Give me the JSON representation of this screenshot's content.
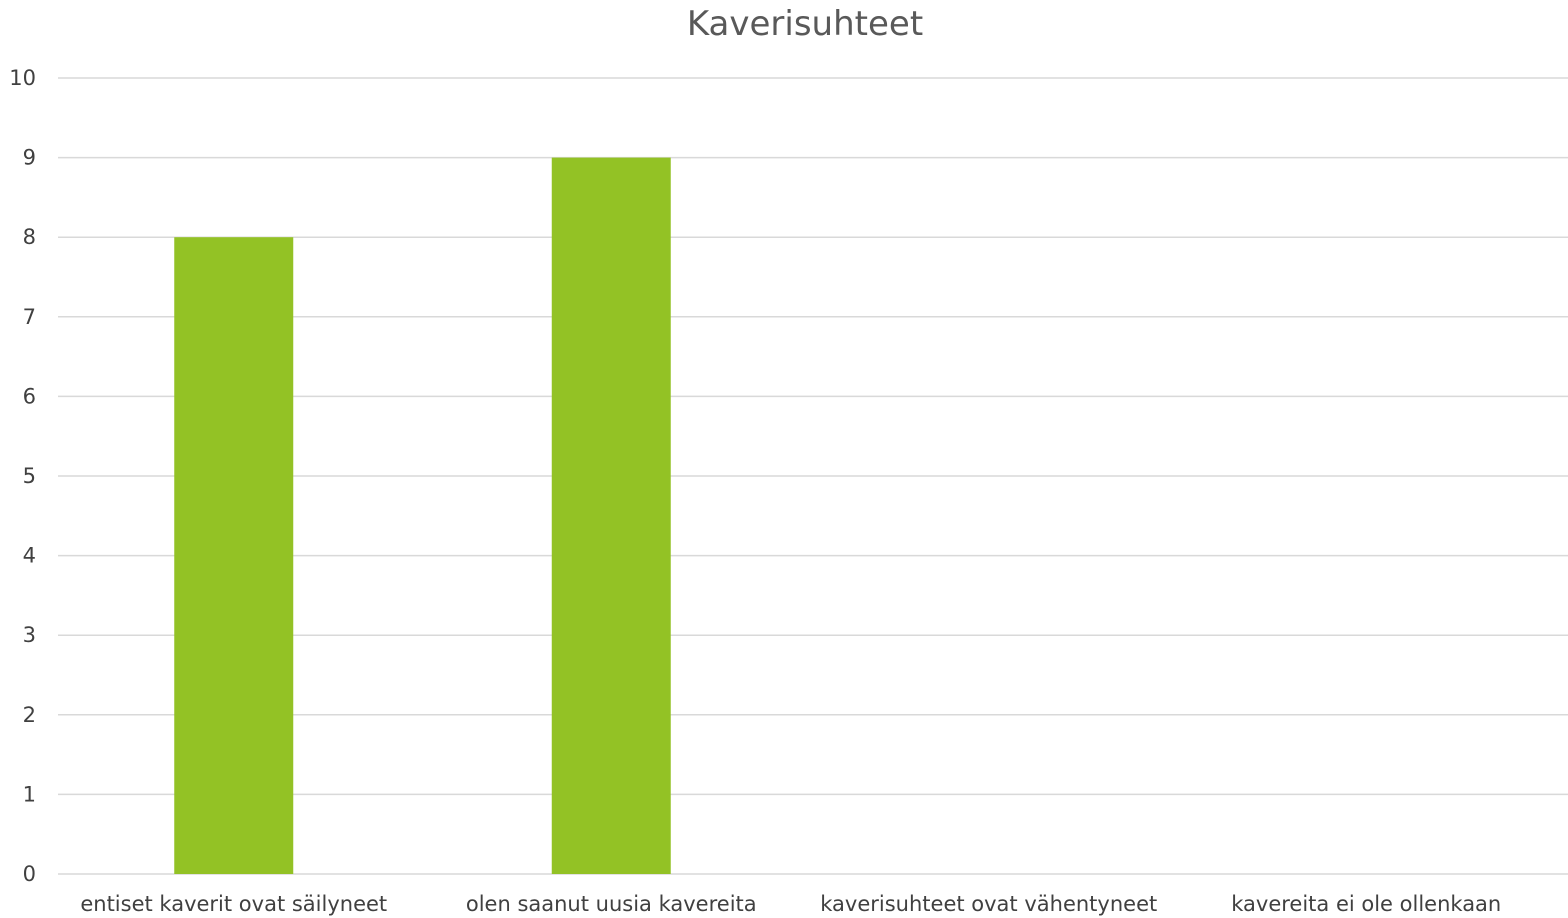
{
  "chart_data": {
    "type": "bar",
    "title": "Kaverisuhteet",
    "categories": [
      "entiset kaverit ovat säilyneet",
      "olen saanut uusia kavereita",
      "kaverisuhteet ovat vähentyneet",
      "kavereita ei ole ollenkaan"
    ],
    "values": [
      8,
      9,
      0,
      0
    ],
    "ylim": [
      0,
      10
    ],
    "yticks": [
      "0",
      "1",
      "2",
      "3",
      "4",
      "5",
      "6",
      "7",
      "8",
      "9",
      "10"
    ],
    "xlabel": "",
    "ylabel": "",
    "grid": true,
    "legend": "none",
    "bar_color": "#93C225",
    "grid_color": "#d9d9d9"
  }
}
